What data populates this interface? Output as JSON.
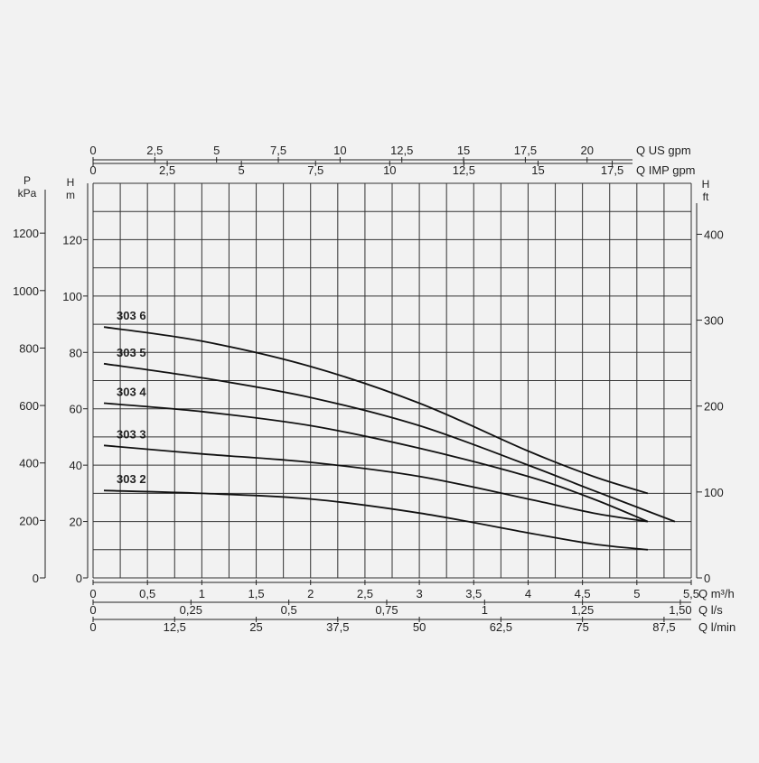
{
  "chart_data": {
    "type": "line",
    "series": [
      {
        "name": "303 6",
        "x": [
          0.1,
          1.0,
          2.0,
          3.0,
          4.0,
          4.6,
          5.1
        ],
        "y": [
          89,
          84,
          75,
          62,
          45,
          36,
          30
        ]
      },
      {
        "name": "303 5",
        "x": [
          0.1,
          1.0,
          2.0,
          3.0,
          4.0,
          4.6,
          5.35
        ],
        "y": [
          76,
          71,
          64,
          54,
          40,
          31,
          20
        ]
      },
      {
        "name": "303 4",
        "x": [
          0.1,
          1.0,
          2.0,
          3.0,
          4.0,
          4.6,
          5.1
        ],
        "y": [
          62,
          59,
          54,
          46,
          36,
          28,
          20
        ]
      },
      {
        "name": "303 3",
        "x": [
          0.1,
          1.0,
          2.0,
          3.0,
          4.0,
          4.6,
          5.1
        ],
        "y": [
          47,
          44,
          41,
          36,
          28,
          23,
          20
        ]
      },
      {
        "name": "303 2",
        "x": [
          0.1,
          1.0,
          2.0,
          3.0,
          4.0,
          4.6,
          5.1
        ],
        "y": [
          31,
          30,
          28,
          23,
          16,
          12,
          10
        ]
      }
    ],
    "xlim": [
      0,
      5.5
    ],
    "ylim": [
      0,
      140
    ],
    "grid": true,
    "axes": {
      "left_p": {
        "unit_lines": [
          "P",
          "kPa"
        ],
        "ticks": [
          "0",
          "200",
          "400",
          "600",
          "800",
          "1000",
          "1200"
        ],
        "values": [
          0,
          200,
          400,
          600,
          800,
          1000,
          1200
        ]
      },
      "left_h": {
        "unit_lines": [
          "H",
          "m"
        ],
        "ticks": [
          "0",
          "20",
          "40",
          "60",
          "80",
          "100",
          "120"
        ],
        "values": [
          0,
          20,
          40,
          60,
          80,
          100,
          120
        ]
      },
      "right_h": {
        "unit_lines": [
          "H",
          "ft"
        ],
        "ticks": [
          "0",
          "100",
          "200",
          "300",
          "400"
        ],
        "values": [
          0,
          100,
          200,
          300,
          400
        ]
      },
      "top_us": {
        "unit": "Q US gpm",
        "ticks": [
          "0",
          "2,5",
          "5",
          "7,5",
          "10",
          "12,5",
          "15",
          "17,5",
          "20"
        ],
        "values": [
          0,
          2.5,
          5,
          7.5,
          10,
          12.5,
          15,
          17.5,
          20
        ]
      },
      "top_imp": {
        "unit": "Q IMP gpm",
        "ticks": [
          "0",
          "2,5",
          "5",
          "7,5",
          "10",
          "12,5",
          "15",
          "17,5"
        ],
        "values": [
          0,
          2.5,
          5,
          7.5,
          10,
          12.5,
          15,
          17.5
        ]
      },
      "bottom_m3h": {
        "unit": "Q m³/h",
        "ticks": [
          "0",
          "0,5",
          "1",
          "1,5",
          "2",
          "2,5",
          "3",
          "3,5",
          "4",
          "4,5",
          "5",
          "5,5"
        ],
        "values": [
          0,
          0.5,
          1,
          1.5,
          2,
          2.5,
          3,
          3.5,
          4,
          4.5,
          5,
          5.5
        ]
      },
      "bottom_ls": {
        "unit": "Q l/s",
        "ticks": [
          "0",
          "0,25",
          "0,5",
          "0,75",
          "1",
          "1,25",
          "1,50"
        ],
        "values": [
          0,
          0.25,
          0.5,
          0.75,
          1,
          1.25,
          1.5
        ]
      },
      "bottom_lmin": {
        "unit": "Q l/min",
        "ticks": [
          "0",
          "12,5",
          "25",
          "37,5",
          "50",
          "62,5",
          "75",
          "87,5"
        ],
        "values": [
          0,
          12.5,
          25,
          37.5,
          50,
          62.5,
          75,
          87.5
        ]
      }
    }
  }
}
